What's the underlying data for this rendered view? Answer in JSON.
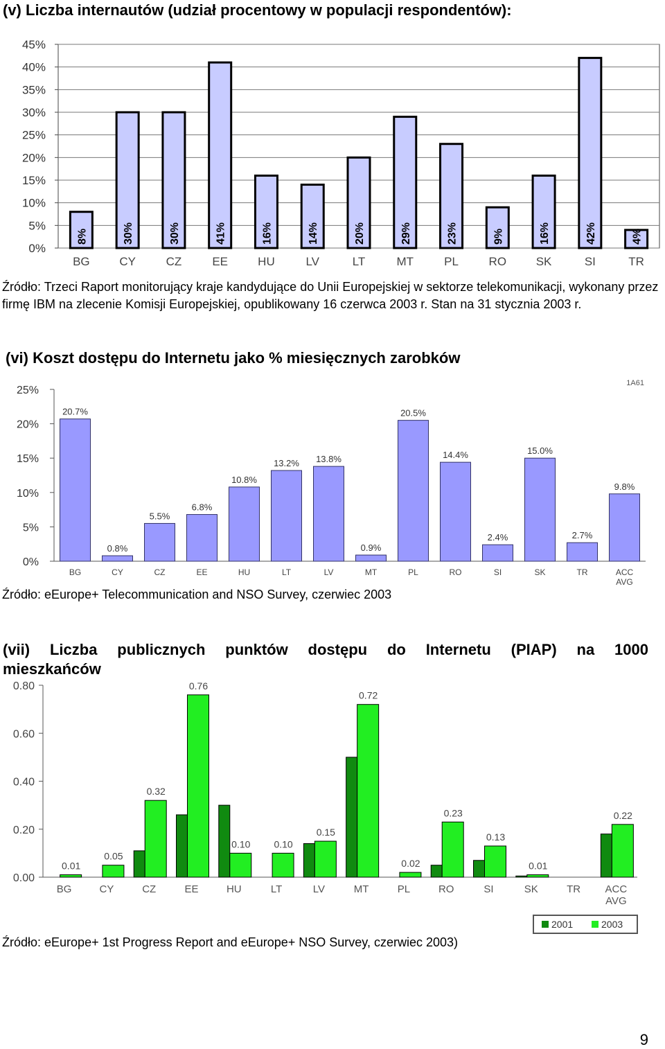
{
  "heading1": "(v) Liczba internautów (udział procentowy w populacji respondentów):",
  "source1": "Źródło: Trzeci Raport monitorujący kraje kandydujące do Unii Europejskiej w sektorze telekomunikacji, wykonany przez firmę IBM na zlecenie Komisji Europejskiej, opublikowany 16 czerwca 2003 r. Stan na 31 stycznia 2003 r.",
  "heading2": "(vi) Koszt dostępu do Internetu jako % miesięcznych zarobków",
  "source2": "Źródło: eEurope+ Telecommunication and NSO Survey, czerwiec 2003",
  "heading3_line1": "(vii) Liczba publicznych punktów dostępu do Internetu (PIAP) na 1000",
  "heading3_line2": "mieszkańców",
  "source3": "Źródło: eEurope+ 1st Progress Report and eEurope+ NSO Survey, czerwiec 2003)",
  "page_number": "9",
  "chart_data": [
    {
      "type": "bar",
      "categories": [
        "BG",
        "CY",
        "CZ",
        "EE",
        "HU",
        "LV",
        "LT",
        "MT",
        "PL",
        "RO",
        "SK",
        "SI",
        "TR"
      ],
      "values": [
        8,
        30,
        30,
        41,
        16,
        14,
        20,
        29,
        23,
        9,
        16,
        42,
        4
      ],
      "data_labels": [
        "8%",
        "30%",
        "30%",
        "41%",
        "16%",
        "14%",
        "20%",
        "29%",
        "23%",
        "9%",
        "16%",
        "42%",
        "4%"
      ],
      "yticks": [
        "0%",
        "5%",
        "10%",
        "15%",
        "20%",
        "25%",
        "30%",
        "35%",
        "40%",
        "45%"
      ],
      "ylim": [
        0,
        45
      ],
      "grid": true,
      "colors": {
        "bar": "#c8ccff",
        "edge": "#000000"
      }
    },
    {
      "type": "bar",
      "corner_label": "1A61",
      "categories": [
        "BG",
        "CY",
        "CZ",
        "EE",
        "HU",
        "LT",
        "LV",
        "MT",
        "PL",
        "RO",
        "SI",
        "SK",
        "TR",
        "ACC AVG"
      ],
      "values": [
        20.7,
        0.8,
        5.5,
        6.8,
        10.8,
        13.2,
        13.8,
        0.9,
        20.5,
        14.4,
        2.4,
        15.0,
        2.7,
        9.8
      ],
      "data_labels": [
        "20.7%",
        "0.8%",
        "5.5%",
        "6.8%",
        "10.8%",
        "13.2%",
        "13.8%",
        "0.9%",
        "20.5%",
        "14.4%",
        "2.4%",
        "15.0%",
        "2.7%",
        "9.8%"
      ],
      "yticks": [
        "0%",
        "5%",
        "10%",
        "15%",
        "20%",
        "25%"
      ],
      "ylim": [
        0,
        25
      ],
      "grid": false,
      "colors": {
        "bar": "#9999ff",
        "edge": "#333366"
      }
    },
    {
      "type": "bar",
      "categories": [
        "BG",
        "CY",
        "CZ",
        "EE",
        "HU",
        "LT",
        "LV",
        "MT",
        "PL",
        "RO",
        "SI",
        "SK",
        "TR",
        "ACC AVG"
      ],
      "series": [
        {
          "name": "2001",
          "values": [
            null,
            null,
            0.11,
            0.26,
            0.3,
            null,
            0.14,
            0.5,
            null,
            0.05,
            0.07,
            0.005,
            null,
            0.18
          ]
        },
        {
          "name": "2003",
          "values": [
            0.01,
            0.05,
            0.32,
            0.76,
            0.1,
            0.1,
            0.15,
            0.72,
            0.02,
            0.23,
            0.13,
            0.01,
            null,
            0.22
          ]
        }
      ],
      "data_labels_2003": [
        "0.01",
        "0.05",
        "0.32",
        "0.76",
        "0.10",
        "0.10",
        "0.15",
        "0.72",
        "0.02",
        "0.23",
        "0.13",
        "0.01",
        "",
        "0.22"
      ],
      "yticks": [
        "0.00",
        "0.20",
        "0.40",
        "0.60",
        "0.80"
      ],
      "ylim": [
        0,
        0.8
      ],
      "grid": false,
      "legend": "bottom-right",
      "colors": {
        "2001": "#108a10",
        "2003": "#22ee22",
        "edge": "#000000"
      }
    }
  ]
}
